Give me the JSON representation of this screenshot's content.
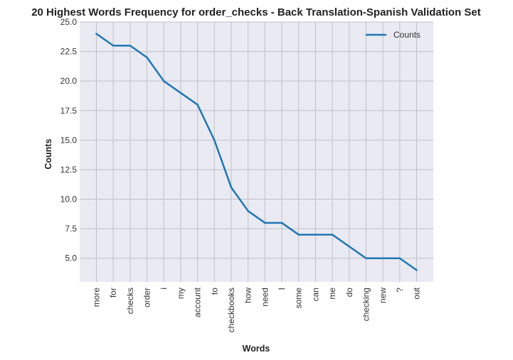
{
  "chart_data": {
    "type": "line",
    "title": "20 Highest Words Frequency for order_checks - Back Translation-Spanish Validation Set",
    "xlabel": "Words",
    "ylabel": "Counts",
    "categories": [
      "more",
      "for",
      "checks",
      "order",
      "i",
      "my",
      "account",
      "to",
      "checkbooks",
      "how",
      "need",
      "I",
      "some",
      "can",
      "me",
      "do",
      "checking",
      "new",
      "?",
      "out"
    ],
    "series": [
      {
        "name": "Counts",
        "values": [
          24,
          23,
          23,
          22,
          20,
          19,
          18,
          15,
          11,
          9,
          8,
          8,
          7,
          7,
          7,
          6,
          5,
          5,
          5,
          4
        ]
      }
    ],
    "ylim": [
      3.0,
      25.0
    ],
    "yticks": [
      "5.0",
      "7.5",
      "10.0",
      "12.5",
      "15.0",
      "17.5",
      "20.0",
      "22.5",
      "25.0"
    ],
    "grid": true,
    "legend": "top-right",
    "colors": {
      "line": "#1f77b4",
      "background": "#eaeaf2",
      "grid": "#c0c0c8"
    }
  }
}
